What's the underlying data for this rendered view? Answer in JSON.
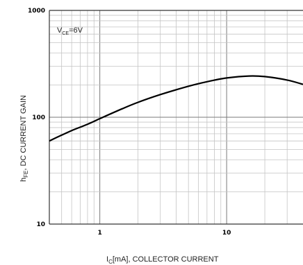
{
  "chart_data": {
    "type": "line",
    "x_scale": "log",
    "y_scale": "log",
    "xlim": [
      0.4,
      40
    ],
    "ylim": [
      10,
      1000
    ],
    "x_tick_labels": [
      "1",
      "10"
    ],
    "y_tick_labels": [
      "1000",
      "100",
      "10"
    ],
    "xlabel_sub": "C",
    "xlabel_text": "[mA], COLLECTOR CURRENT",
    "xlabel_main": "I",
    "ylabel_main": "h",
    "ylabel_sub": "FE",
    "ylabel_text": ", DC CURRENT GAIN",
    "annotation": {
      "main": "V",
      "sub": "CE",
      "text": "=6V"
    },
    "grid": true,
    "series": [
      {
        "x": [
          0.4,
          0.5,
          0.6,
          0.8,
          1.0,
          1.5,
          2,
          3,
          5,
          7,
          10,
          15,
          20,
          30,
          40
        ],
        "y": [
          60,
          68,
          75,
          86,
          97,
          120,
          138,
          163,
          195,
          215,
          233,
          243,
          240,
          223,
          203
        ]
      }
    ]
  }
}
